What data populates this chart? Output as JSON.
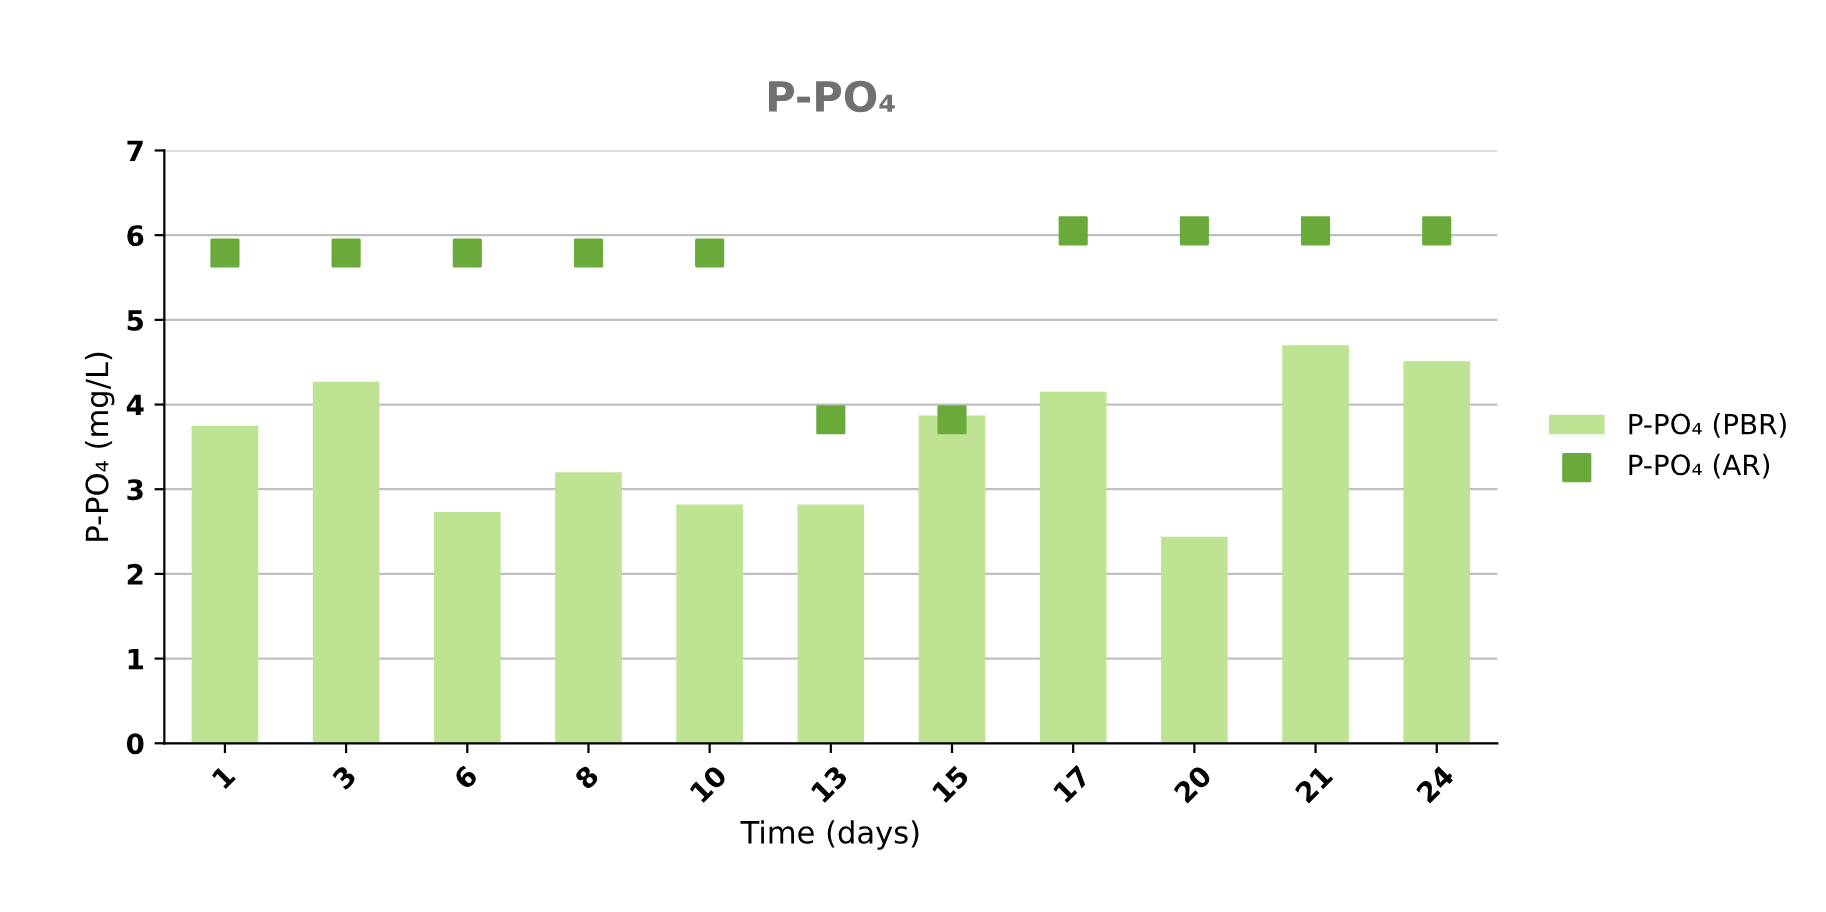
{
  "chart_data": {
    "type": "bar",
    "title": "P-PO₄",
    "xlabel": "Time (days)",
    "ylabel": "P-PO₄ (mg/L)",
    "categories": [
      "1",
      "3",
      "6",
      "8",
      "10",
      "13",
      "15",
      "17",
      "20",
      "21",
      "24"
    ],
    "series": [
      {
        "name": "P-PO₄ (PBR)",
        "color": "#bde393",
        "values": [
          3.75,
          4.27,
          2.73,
          3.2,
          2.82,
          2.82,
          3.87,
          4.15,
          2.44,
          4.7,
          4.51
        ]
      },
      {
        "name": "P-PO₄ (AR)",
        "type": "scatter",
        "marker": "square",
        "color": "#6aaa3a",
        "x": [
          "1",
          "3",
          "6",
          "8",
          "10",
          "13",
          "15",
          "17",
          "20",
          "21",
          "24"
        ],
        "values": [
          5.79,
          5.79,
          5.79,
          5.79,
          5.79,
          3.82,
          3.82,
          6.05,
          6.05,
          6.05,
          6.05
        ]
      }
    ],
    "ylim": [
      0,
      7
    ],
    "yticks": [
      0,
      1,
      2,
      3,
      4,
      5,
      6,
      7
    ],
    "grid": "y",
    "legend": "right"
  }
}
